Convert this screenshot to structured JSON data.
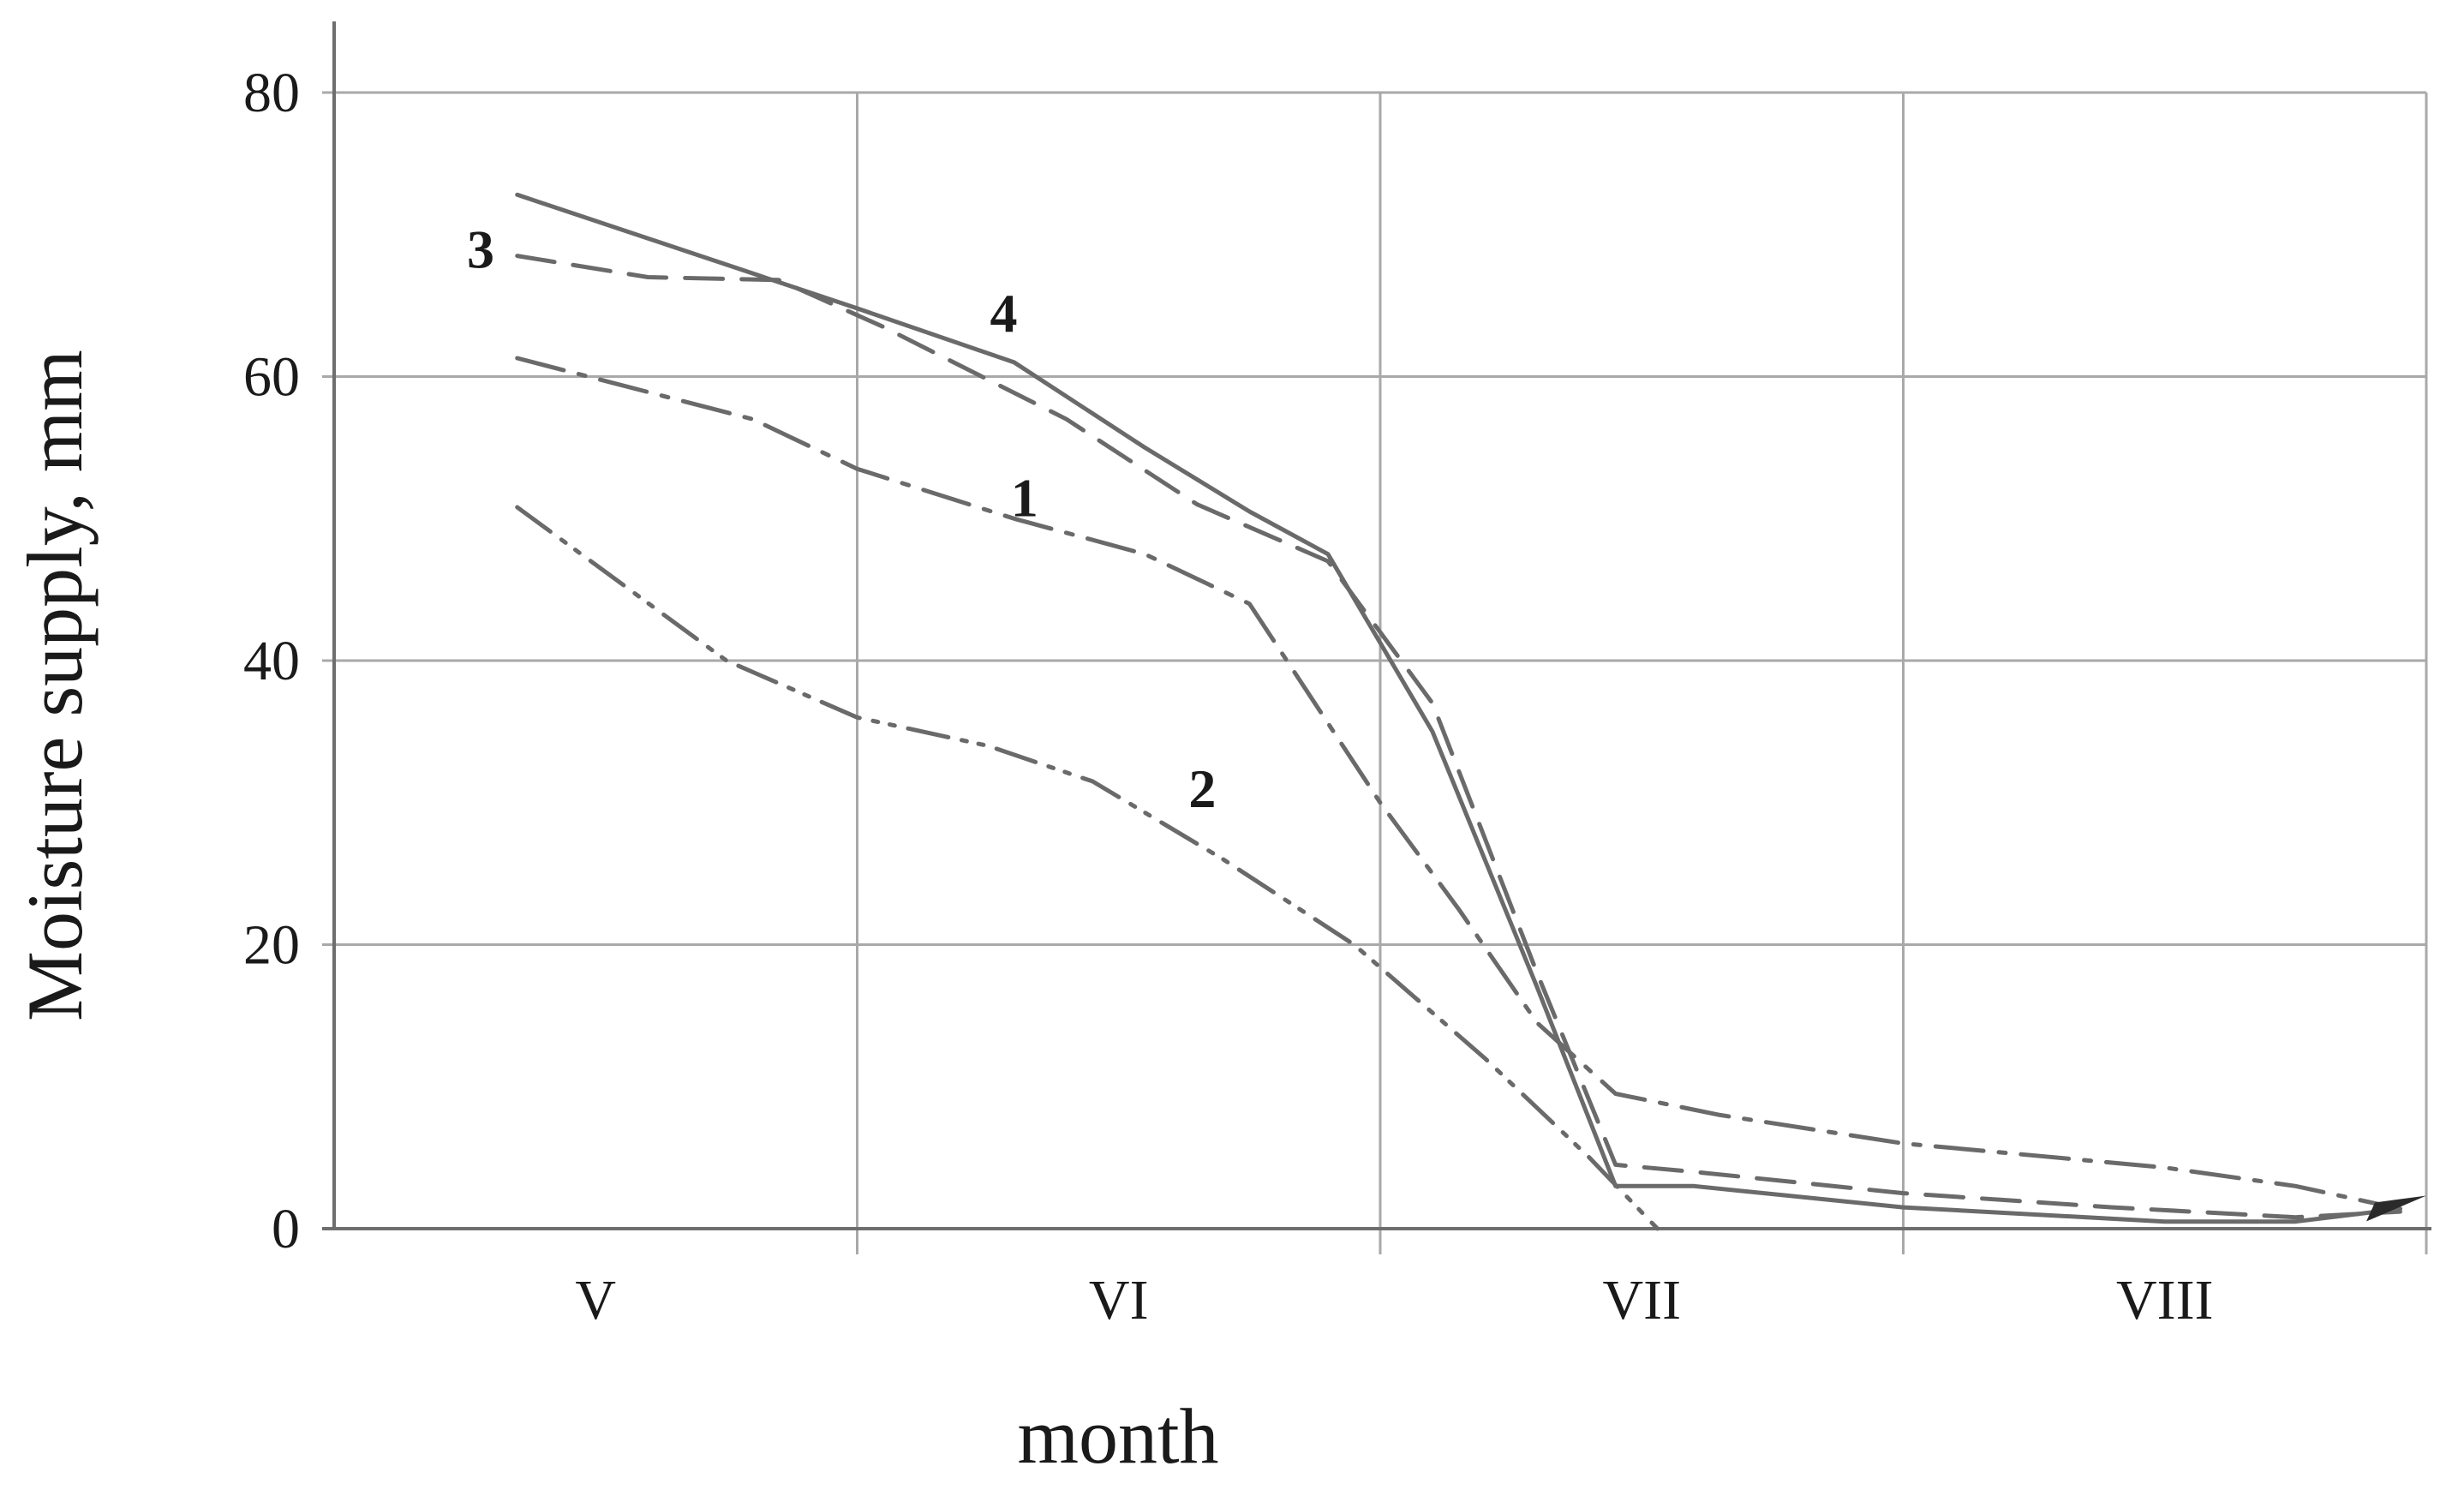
{
  "chart_data": {
    "type": "line",
    "title": "",
    "xlabel": "month",
    "ylabel": "Moisture supply, mm",
    "categories": [
      "V",
      "VI",
      "VII",
      "VIII"
    ],
    "xlim": [
      0,
      4
    ],
    "ylim": [
      0,
      80
    ],
    "yticks": [
      0,
      20,
      40,
      60,
      80
    ],
    "ytick_labels": [
      "0",
      "20",
      "40",
      "60",
      "80"
    ],
    "grid": true,
    "colors": {
      "grid": "#a9a9a9",
      "axis": "#6e6e6e",
      "series": "#6a6a6a",
      "text": "#1a1a1a"
    },
    "series": [
      {
        "name": "1",
        "style": "dash-dot",
        "points": [
          [
            0.35,
            61.3
          ],
          [
            0.8,
            57.0
          ],
          [
            1.0,
            53.5
          ],
          [
            1.3,
            50.0
          ],
          [
            1.55,
            47.5
          ],
          [
            1.75,
            44.0
          ],
          [
            2.0,
            30.0
          ],
          [
            2.15,
            22.5
          ],
          [
            2.3,
            14.5
          ],
          [
            2.45,
            9.5
          ],
          [
            2.65,
            8.0
          ],
          [
            3.0,
            6.0
          ],
          [
            3.5,
            4.3
          ],
          [
            3.75,
            3.0
          ],
          [
            3.95,
            1.4
          ]
        ]
      },
      {
        "name": "2",
        "style": "dash-dot-dot",
        "points": [
          [
            0.35,
            50.8
          ],
          [
            0.75,
            40.0
          ],
          [
            1.0,
            36.0
          ],
          [
            1.25,
            34.0
          ],
          [
            1.45,
            31.5
          ],
          [
            1.7,
            26.0
          ],
          [
            1.95,
            20.0
          ],
          [
            2.2,
            12.0
          ],
          [
            2.4,
            5.0
          ],
          [
            2.53,
            0.0
          ]
        ]
      },
      {
        "name": "3",
        "style": "dashed",
        "points": [
          [
            0.35,
            68.5
          ],
          [
            0.6,
            67.0
          ],
          [
            0.85,
            66.8
          ],
          [
            1.05,
            63.5
          ],
          [
            1.4,
            57.0
          ],
          [
            1.65,
            51.0
          ],
          [
            1.9,
            47.0
          ],
          [
            2.1,
            37.0
          ],
          [
            2.3,
            18.0
          ],
          [
            2.45,
            4.5
          ],
          [
            2.6,
            4.0
          ],
          [
            3.0,
            2.5
          ],
          [
            3.4,
            1.5
          ],
          [
            3.75,
            0.8
          ],
          [
            3.95,
            1.2
          ]
        ]
      },
      {
        "name": "4",
        "style": "solid",
        "points": [
          [
            0.35,
            72.8
          ],
          [
            0.7,
            68.5
          ],
          [
            1.0,
            64.8
          ],
          [
            1.3,
            61.0
          ],
          [
            1.55,
            55.0
          ],
          [
            1.75,
            50.5
          ],
          [
            1.9,
            47.5
          ],
          [
            2.1,
            35.0
          ],
          [
            2.3,
            17.0
          ],
          [
            2.45,
            3.0
          ],
          [
            2.6,
            3.0
          ],
          [
            3.0,
            1.5
          ],
          [
            3.5,
            0.5
          ],
          [
            3.75,
            0.5
          ],
          [
            3.95,
            1.4
          ]
        ]
      }
    ],
    "annotations": [
      {
        "text": "1",
        "x": 1.32,
        "y": 51.5,
        "series": "1"
      },
      {
        "text": "2",
        "x": 1.66,
        "y": 31.0,
        "series": "2"
      },
      {
        "text": "3",
        "x": 0.28,
        "y": 69.0,
        "series": "3"
      },
      {
        "text": "4",
        "x": 1.28,
        "y": 64.5,
        "series": "4"
      }
    ]
  }
}
